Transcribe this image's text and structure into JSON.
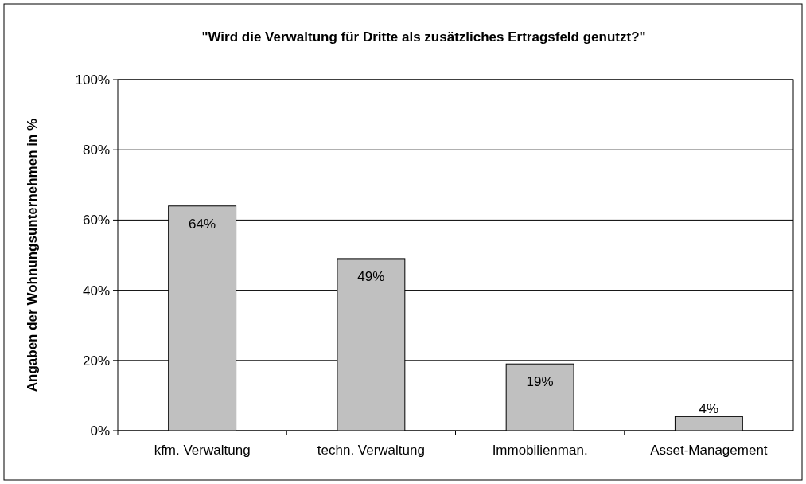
{
  "chart_data": {
    "type": "bar",
    "title": "\"Wird die Verwaltung für Dritte als zusätzliches Ertragsfeld genutzt?\"",
    "ylabel": "Angaben der Wohnungsunternehmen in %",
    "categories": [
      "kfm. Verwaltung",
      "techn. Verwaltung",
      "Immobilienman.",
      "Asset-Management"
    ],
    "values": [
      64,
      49,
      19,
      4
    ],
    "value_labels": [
      "64%",
      "49%",
      "19%",
      "4%"
    ],
    "color": "#c0c0c0",
    "ylim": [
      0,
      100
    ],
    "yticks": [
      {
        "value": 0,
        "label": "0%"
      },
      {
        "value": 20,
        "label": "20%"
      },
      {
        "value": 40,
        "label": "40%"
      },
      {
        "value": 60,
        "label": "60%"
      },
      {
        "value": 80,
        "label": "80%"
      },
      {
        "value": 100,
        "label": "100%"
      }
    ],
    "grid": "y"
  }
}
